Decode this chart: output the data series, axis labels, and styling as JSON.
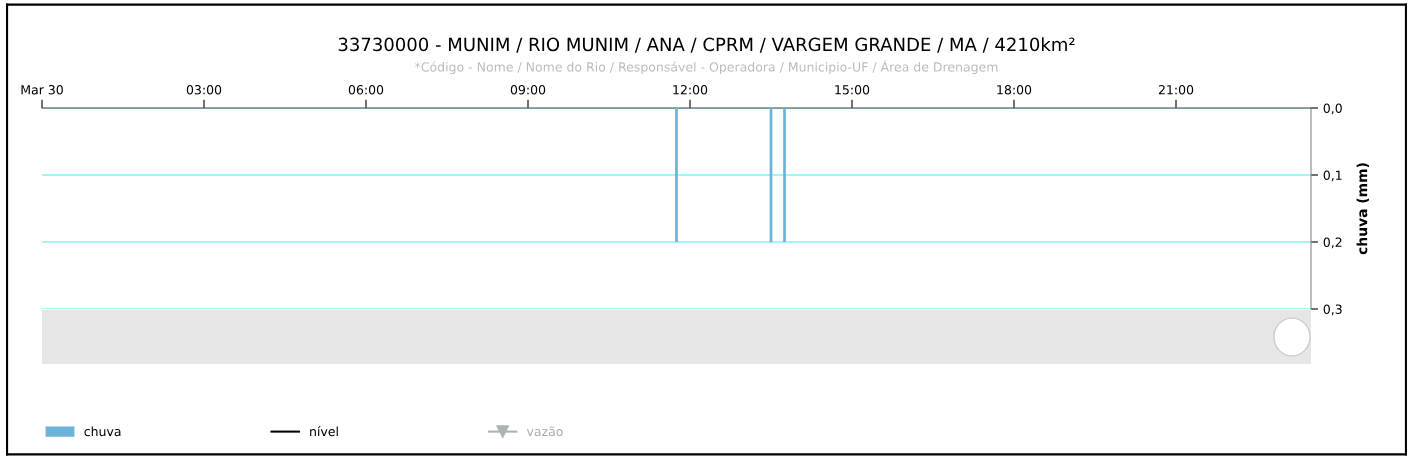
{
  "chart_data": {
    "type": "bar",
    "title": "33730000 - MUNIM / RIO MUNIM / ANA / CPRM / VARGEM GRANDE / MA / 4210km²",
    "subtitle": "*Código - Nome / Nome do Rio / Responsável - Operadora / Municipio-UF / Área de Drenagem",
    "ylabel": "chuva (mm)",
    "x": [
      11.75,
      13.5,
      13.75
    ],
    "series": [
      {
        "name": "chuva",
        "color": "#6ab4da",
        "values": [
          0.2,
          0.2,
          0.2
        ]
      },
      {
        "name": "nível",
        "type": "line",
        "color": "#000000",
        "values": [
          null,
          null,
          null
        ]
      },
      {
        "name": "vazão",
        "type": "line",
        "color": "#aab4b4",
        "marker": "triangle",
        "values": [
          null,
          null,
          null
        ]
      }
    ],
    "xlim": [
      0,
      23.5
    ],
    "xticks": [
      {
        "value": 0,
        "label": "Mar 30"
      },
      {
        "value": 3,
        "label": "03:00"
      },
      {
        "value": 6,
        "label": "06:00"
      },
      {
        "value": 9,
        "label": "09:00"
      },
      {
        "value": 12,
        "label": "12:00"
      },
      {
        "value": 15,
        "label": "15:00"
      },
      {
        "value": 18,
        "label": "18:00"
      },
      {
        "value": 21,
        "label": "21:00"
      }
    ],
    "ylim": [
      0.3,
      0
    ],
    "yticks": [
      {
        "value": 0,
        "label": "0,0"
      },
      {
        "value": 0.1,
        "label": "0,1"
      },
      {
        "value": 0.2,
        "label": "0,2"
      },
      {
        "value": 0.3,
        "label": "0,3"
      }
    ],
    "grid": "y",
    "legend": "bottom left"
  }
}
